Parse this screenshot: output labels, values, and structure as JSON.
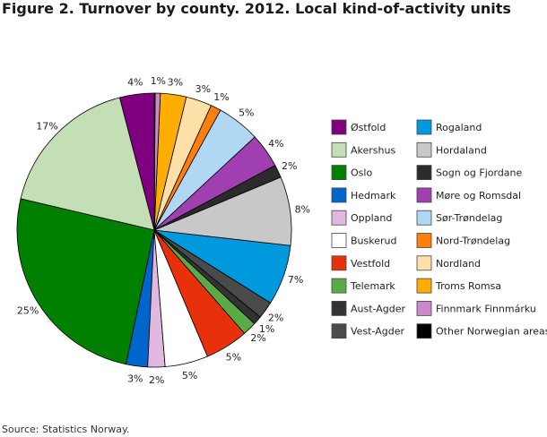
{
  "header": {
    "title": "Figure 2. Turnover by county. 2012. Local kind-of-activity units"
  },
  "footer": {
    "source": "Source: Statistics Norway."
  },
  "chart_data": {
    "type": "pie",
    "unit": "%",
    "legend_position": "right",
    "slices": [
      {
        "name": "Østfold",
        "value": 4,
        "label": "4%",
        "color": "#7f007f"
      },
      {
        "name": "Akershus",
        "value": 17,
        "label": "17%",
        "color": "#c4dfb6"
      },
      {
        "name": "Oslo",
        "value": 25,
        "label": "25%",
        "color": "#008000"
      },
      {
        "name": "Hedmark",
        "value": 2.5,
        "label": "3%",
        "color": "#0066cc"
      },
      {
        "name": "Oppland",
        "value": 2,
        "label": "2%",
        "color": "#e0b8e0"
      },
      {
        "name": "Buskerud",
        "value": 5,
        "label": "5%",
        "color": "#ffffff"
      },
      {
        "name": "Vestfold",
        "value": 5,
        "label": "5%",
        "color": "#e8300a"
      },
      {
        "name": "Telemark",
        "value": 1.6,
        "label": "2%",
        "color": "#5aab45"
      },
      {
        "name": "Aust-Agder",
        "value": 1,
        "label": "1%",
        "color": "#333333"
      },
      {
        "name": "Vest-Agder",
        "value": 2,
        "label": "2%",
        "color": "#4a4a4a"
      },
      {
        "name": "Rogaland",
        "value": 7,
        "label": "7%",
        "color": "#0099dd"
      },
      {
        "name": "Hordaland",
        "value": 8,
        "label": "8%",
        "color": "#c8c8c8"
      },
      {
        "name": "Sogn og Fjordane",
        "value": 1.5,
        "label": "2%",
        "color": "#2b2b2b"
      },
      {
        "name": "Møre og Romsdal",
        "value": 4,
        "label": "4%",
        "color": "#a040b0"
      },
      {
        "name": "Sør-Trøndelag",
        "value": 5,
        "label": "5%",
        "color": "#b0d8f5"
      },
      {
        "name": "Nord-Trøndelag",
        "value": 1.2,
        "label": "1%",
        "color": "#ff7f0e"
      },
      {
        "name": "Nordland",
        "value": 3,
        "label": "3%",
        "color": "#fde0a8"
      },
      {
        "name": "Troms Romsa",
        "value": 3,
        "label": "3%",
        "color": "#ffad00"
      },
      {
        "name": "Finnmark Finnmárku",
        "value": 0.6,
        "label": "1%",
        "color": "#cc88cc"
      },
      {
        "name": "Other Norwegian areas",
        "value": 0.1,
        "label": "",
        "color": "#000000"
      }
    ]
  }
}
